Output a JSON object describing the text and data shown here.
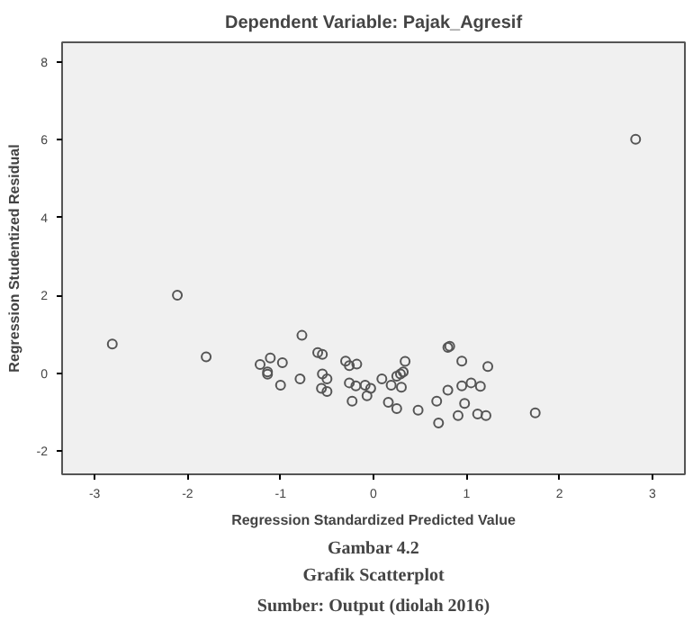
{
  "chart_data": {
    "type": "scatter",
    "title": "Dependent Variable: Pajak_Agresif",
    "xlabel": "Regression Standardized Predicted Value",
    "ylabel": "Regression Studentized Residual",
    "annotations": [
      "Gambar 4.2",
      "Grafik Scatterplot",
      "Sumber: Output (diolah 2016)"
    ],
    "x": [
      -2.81,
      -2.11,
      -1.8,
      -1.22,
      -1.11,
      -1.14,
      -1.14,
      -0.98,
      -1.0,
      -0.79,
      -0.77,
      -0.6,
      -0.55,
      -0.55,
      -0.5,
      -0.56,
      -0.5,
      -0.3,
      -0.26,
      -0.18,
      -0.26,
      -0.19,
      -0.23,
      -0.09,
      -0.03,
      -0.07,
      0.09,
      0.19,
      0.16,
      0.25,
      0.25,
      0.29,
      0.32,
      0.34,
      0.3,
      0.48,
      0.68,
      0.7,
      0.8,
      0.82,
      0.8,
      0.95,
      0.95,
      1.05,
      0.98,
      0.91,
      1.15,
      1.23,
      1.12,
      1.21,
      1.74,
      2.82
    ],
    "series": [
      {
        "color": "#555555",
        "values": [
          0.75,
          2.0,
          0.42,
          0.22,
          0.39,
          0.03,
          -0.03,
          0.27,
          -0.31,
          -0.15,
          0.97,
          0.53,
          0.48,
          -0.02,
          -0.15,
          -0.39,
          -0.47,
          0.31,
          0.19,
          0.23,
          -0.25,
          -0.33,
          -0.72,
          -0.31,
          -0.39,
          -0.58,
          -0.15,
          -0.31,
          -0.75,
          -0.91,
          -0.08,
          -0.02,
          0.03,
          0.3,
          -0.36,
          -0.95,
          -0.72,
          -1.28,
          -0.44,
          0.69,
          0.66,
          0.31,
          -0.33,
          -0.25,
          -0.78,
          -1.09,
          -0.34,
          0.17,
          -1.05,
          -1.09,
          -1.02,
          6.01
        ]
      }
    ],
    "xlim": [
      -3.35,
      3.35
    ],
    "ylim": [
      -2.6,
      8.5
    ],
    "xticks": [
      -3,
      -2,
      -1,
      0,
      1,
      2,
      3
    ],
    "yticks": [
      -2,
      0,
      2,
      4,
      6,
      8
    ],
    "marker": "circle",
    "grid": false
  }
}
